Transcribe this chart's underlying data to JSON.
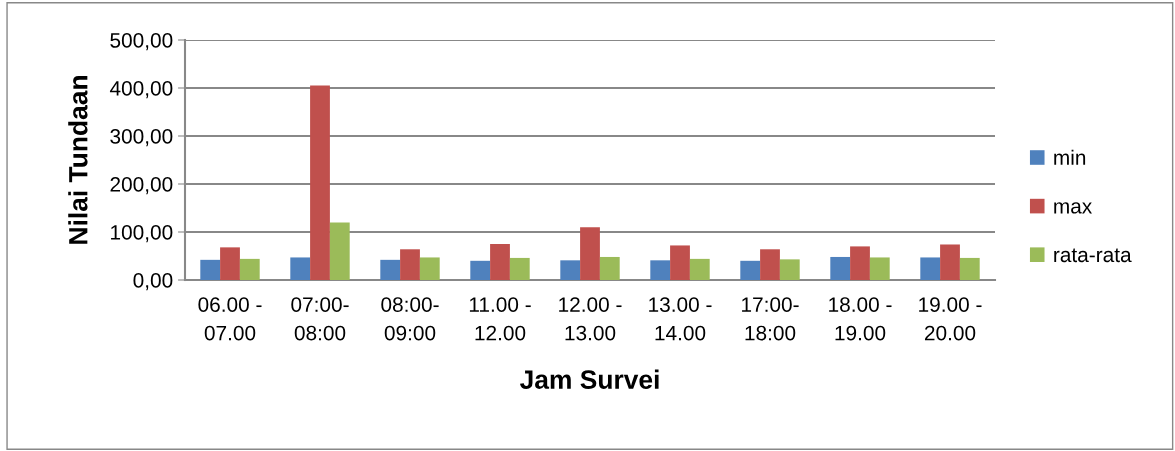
{
  "chart_data": {
    "type": "bar",
    "xlabel": "Jam Survei",
    "ylabel": "Nilai Tundaan",
    "categories": [
      "06.00 -\n07.00",
      "07:00-\n08:00",
      "08:00-\n09:00",
      "11.00 -\n12.00",
      "12.00 -\n13.00",
      "13.00 -\n14.00",
      "17:00-\n18:00",
      "18.00 -\n19.00",
      "19.00 -\n20.00"
    ],
    "series": [
      {
        "name": "min",
        "color": "#4f81bd",
        "values": [
          42,
          47,
          42,
          40,
          41,
          41,
          40,
          48,
          47
        ]
      },
      {
        "name": "max",
        "color": "#c0504d",
        "values": [
          68,
          405,
          64,
          75,
          110,
          72,
          64,
          70,
          74
        ]
      },
      {
        "name": "rata-rata",
        "color": "#9bbb59",
        "values": [
          44,
          120,
          47,
          46,
          48,
          44,
          43,
          47,
          46
        ]
      }
    ],
    "ylim": [
      0,
      500
    ],
    "yticks": [
      {
        "value": 0,
        "label": "0,00"
      },
      {
        "value": 100,
        "label": "100,00"
      },
      {
        "value": 200,
        "label": "200,00"
      },
      {
        "value": 300,
        "label": "300,00"
      },
      {
        "value": 400,
        "label": "400,00"
      },
      {
        "value": 500,
        "label": "500,00"
      }
    ],
    "grid": "y",
    "legend": "right"
  }
}
